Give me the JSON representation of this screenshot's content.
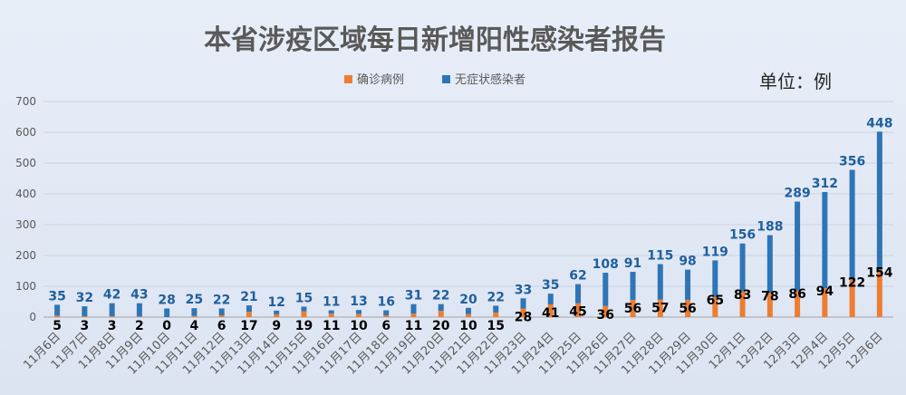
{
  "chart_data": {
    "type": "bar",
    "stacked": true,
    "title": "本省涉疫区域每日新增阳性感染者报告",
    "unit_label": "单位：例",
    "categories": [
      "11月6日",
      "11月7日",
      "11月8日",
      "11月9日",
      "11月10日",
      "11月11日",
      "11月12日",
      "11月13日",
      "11月14日",
      "11月15日",
      "11月16日",
      "11月17日",
      "11月18日",
      "11月19日",
      "11月20日",
      "11月21日",
      "11月22日",
      "11月23日",
      "11月24日",
      "11月25日",
      "11月26日",
      "11月27日",
      "11月28日",
      "11月29日",
      "11月30日",
      "12月1日",
      "12月2日",
      "12月3日",
      "12月4日",
      "12月5日",
      "12月6日"
    ],
    "series": [
      {
        "name": "确诊病例",
        "color": "#ed7d31",
        "values": [
          5,
          3,
          3,
          2,
          0,
          4,
          6,
          17,
          9,
          19,
          11,
          10,
          6,
          11,
          20,
          10,
          15,
          28,
          41,
          45,
          36,
          56,
          57,
          56,
          65,
          83,
          78,
          86,
          94,
          122,
          154
        ]
      },
      {
        "name": "无症状感染者",
        "color": "#2e75b6",
        "values": [
          35,
          32,
          42,
          43,
          28,
          25,
          22,
          21,
          12,
          15,
          11,
          13,
          16,
          31,
          22,
          20,
          22,
          33,
          35,
          62,
          108,
          91,
          115,
          98,
          119,
          156,
          188,
          289,
          312,
          356,
          448
        ]
      }
    ],
    "ylim": [
      0,
      700
    ],
    "yticks": [
      0,
      100,
      200,
      300,
      400,
      500,
      600,
      700
    ],
    "grid": true,
    "legend_position": "top"
  }
}
